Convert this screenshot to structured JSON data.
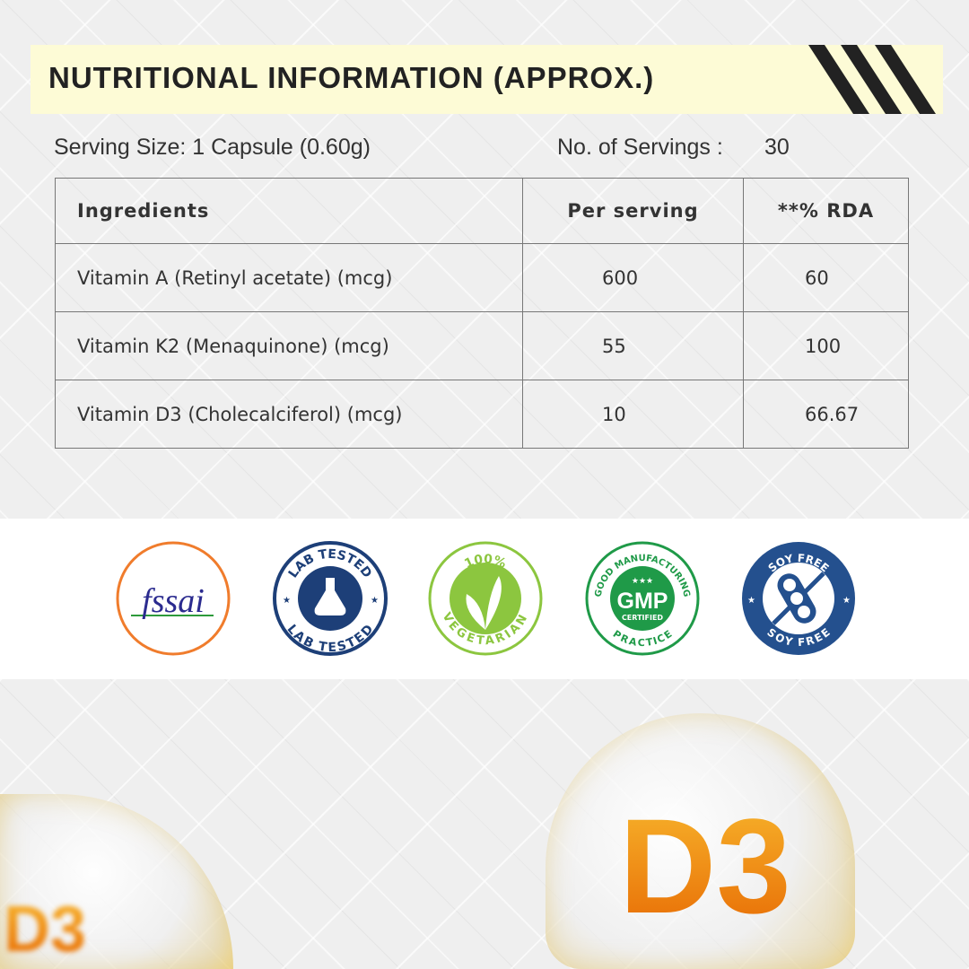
{
  "header": {
    "title": "NUTRITIONAL INFORMATION (APPROX.)"
  },
  "serving": {
    "size": "Serving Size: 1 Capsule (0.60g)",
    "count_label": "No. of Servings :",
    "count": "30"
  },
  "table": {
    "headers": [
      "Ingredients",
      "Per serving",
      "**% RDA"
    ],
    "rows": [
      [
        "Vitamin A (Retinyl acetate) (mcg)",
        "600",
        "60"
      ],
      [
        "Vitamin K2 (Menaquinone) (mcg)",
        "55",
        "100"
      ],
      [
        "Vitamin D3 (Cholecalciferol) (mcg)",
        "10",
        "66.67"
      ]
    ]
  },
  "badges": {
    "fssai": "fssai",
    "lab_top": "LAB TESTED",
    "lab_bottom": "LAB TESTED",
    "veg_top": "100%",
    "veg_bottom": "VEGETARIAN",
    "gmp_top": "GOOD MANUFACTURING",
    "gmp_main": "GMP",
    "gmp_sub": "CERTIFIED",
    "gmp_bottom": "PRACTICE",
    "soy_top": "SOY FREE",
    "soy_bottom": "SOY FREE"
  },
  "decor": {
    "sphere_label": "D3"
  },
  "colors": {
    "banner": "#fdfbd6",
    "fssai": "#f07c2c",
    "lab": "#1d3f78",
    "veg": "#8cc63f",
    "gmp": "#1f9a48",
    "soy": "#24508e",
    "orange": "#f08a10"
  }
}
